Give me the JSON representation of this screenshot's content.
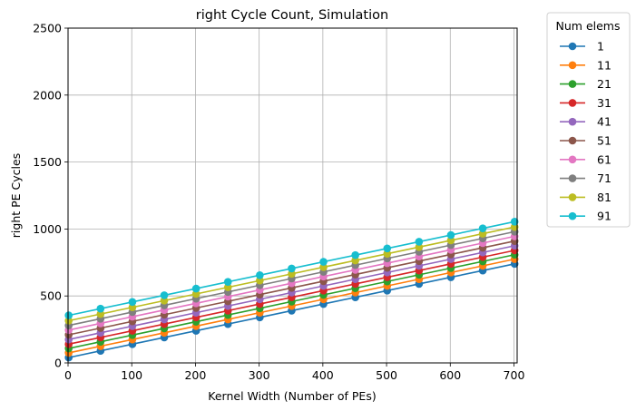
{
  "chart_data": {
    "type": "line",
    "title": "right Cycle Count, Simulation",
    "xlabel": "Kernel Width (Number of PEs)",
    "ylabel": "right PE Cycles",
    "xlim": [
      0,
      705
    ],
    "ylim": [
      0,
      2500
    ],
    "xticks": [
      0,
      100,
      200,
      300,
      400,
      500,
      600,
      700
    ],
    "yticks": [
      0,
      500,
      1000,
      1500,
      2000,
      2500
    ],
    "grid": true,
    "legend_title": "Num elems",
    "legend_position": "outside-right",
    "x": [
      1,
      51,
      101,
      151,
      201,
      251,
      301,
      351,
      401,
      451,
      501,
      551,
      601,
      651,
      701
    ],
    "series": [
      {
        "name": "1",
        "color": "#1f77b4",
        "values": [
          40,
          90,
          140,
          190,
          240,
          290,
          340,
          390,
          440,
          490,
          540,
          590,
          640,
          690,
          740
        ]
      },
      {
        "name": "11",
        "color": "#ff7f0e",
        "values": [
          75,
          125,
          175,
          225,
          275,
          325,
          375,
          425,
          475,
          525,
          575,
          625,
          675,
          725,
          775
        ]
      },
      {
        "name": "21",
        "color": "#2ca02c",
        "values": [
          108,
          158,
          208,
          258,
          308,
          358,
          408,
          458,
          508,
          558,
          608,
          658,
          708,
          758,
          808
        ]
      },
      {
        "name": "31",
        "color": "#d62728",
        "values": [
          140,
          190,
          240,
          290,
          340,
          390,
          440,
          490,
          540,
          590,
          640,
          690,
          740,
          790,
          840
        ]
      },
      {
        "name": "41",
        "color": "#9467bd",
        "values": [
          175,
          225,
          275,
          325,
          375,
          425,
          475,
          525,
          575,
          625,
          675,
          725,
          775,
          825,
          875
        ]
      },
      {
        "name": "51",
        "color": "#8c564b",
        "values": [
          210,
          260,
          310,
          360,
          410,
          460,
          510,
          560,
          610,
          660,
          710,
          760,
          810,
          860,
          910
        ]
      },
      {
        "name": "61",
        "color": "#e377c2",
        "values": [
          245,
          295,
          345,
          395,
          445,
          495,
          545,
          595,
          645,
          695,
          745,
          795,
          845,
          895,
          945
        ]
      },
      {
        "name": "71",
        "color": "#7f7f7f",
        "values": [
          280,
          330,
          380,
          430,
          480,
          530,
          580,
          630,
          680,
          730,
          780,
          830,
          880,
          930,
          980
        ]
      },
      {
        "name": "81",
        "color": "#bcbd22",
        "values": [
          315,
          365,
          415,
          465,
          515,
          565,
          615,
          665,
          715,
          765,
          815,
          865,
          915,
          965,
          1015
        ]
      },
      {
        "name": "91",
        "color": "#17becf",
        "values": [
          355,
          405,
          455,
          505,
          555,
          605,
          655,
          705,
          755,
          805,
          855,
          905,
          955,
          1005,
          1055
        ]
      }
    ]
  }
}
